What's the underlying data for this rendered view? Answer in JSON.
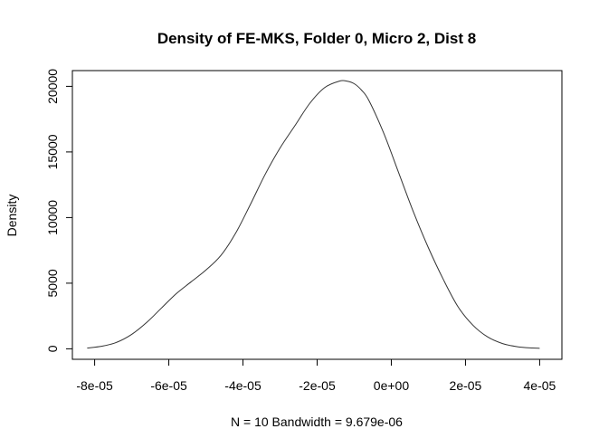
{
  "chart_data": {
    "type": "line",
    "title": "Density of FE-MKS, Folder 0, Micro 2, Dist 8",
    "xlabel": "N = 10   Bandwidth = 9.679e-06",
    "ylabel": "Density",
    "xlim": [
      -8.6e-05,
      4.6e-05
    ],
    "ylim": [
      -800,
      21200
    ],
    "x_ticks": [
      -8e-05,
      -6e-05,
      -4e-05,
      -2e-05,
      0,
      2e-05,
      4e-05
    ],
    "x_tick_labels": [
      "-8e-05",
      "-6e-05",
      "-4e-05",
      "-2e-05",
      "0e+00",
      "2e-05",
      "4e-05"
    ],
    "y_ticks": [
      0,
      5000,
      10000,
      15000,
      20000
    ],
    "y_tick_labels": [
      "0",
      "5000",
      "10000",
      "15000",
      "20000"
    ],
    "grid": false,
    "legend": "none",
    "series": [
      {
        "color": "#333333",
        "x": [
          -8.2e-05,
          -7.8e-05,
          -7.4e-05,
          -7e-05,
          -6.6e-05,
          -6.2e-05,
          -5.8e-05,
          -5.4e-05,
          -5e-05,
          -4.6e-05,
          -4.2e-05,
          -3.8e-05,
          -3.4e-05,
          -3e-05,
          -2.6e-05,
          -2.2e-05,
          -1.8e-05,
          -1.4e-05,
          -1.2e-05,
          -1e-05,
          -8e-06,
          -6e-06,
          -2e-06,
          2e-06,
          6e-06,
          1e-05,
          1.4e-05,
          1.8e-05,
          2.2e-05,
          2.6e-05,
          3e-05,
          3.4e-05,
          3.8e-05,
          4e-05
        ],
        "y": [
          60,
          200,
          500,
          1100,
          2000,
          3100,
          4200,
          5100,
          6000,
          7100,
          8800,
          11000,
          13300,
          15300,
          17000,
          18700,
          19900,
          20400,
          20400,
          20200,
          19700,
          18900,
          16400,
          13400,
          10400,
          7700,
          5300,
          3200,
          1800,
          900,
          400,
          160,
          60,
          40
        ]
      }
    ]
  }
}
